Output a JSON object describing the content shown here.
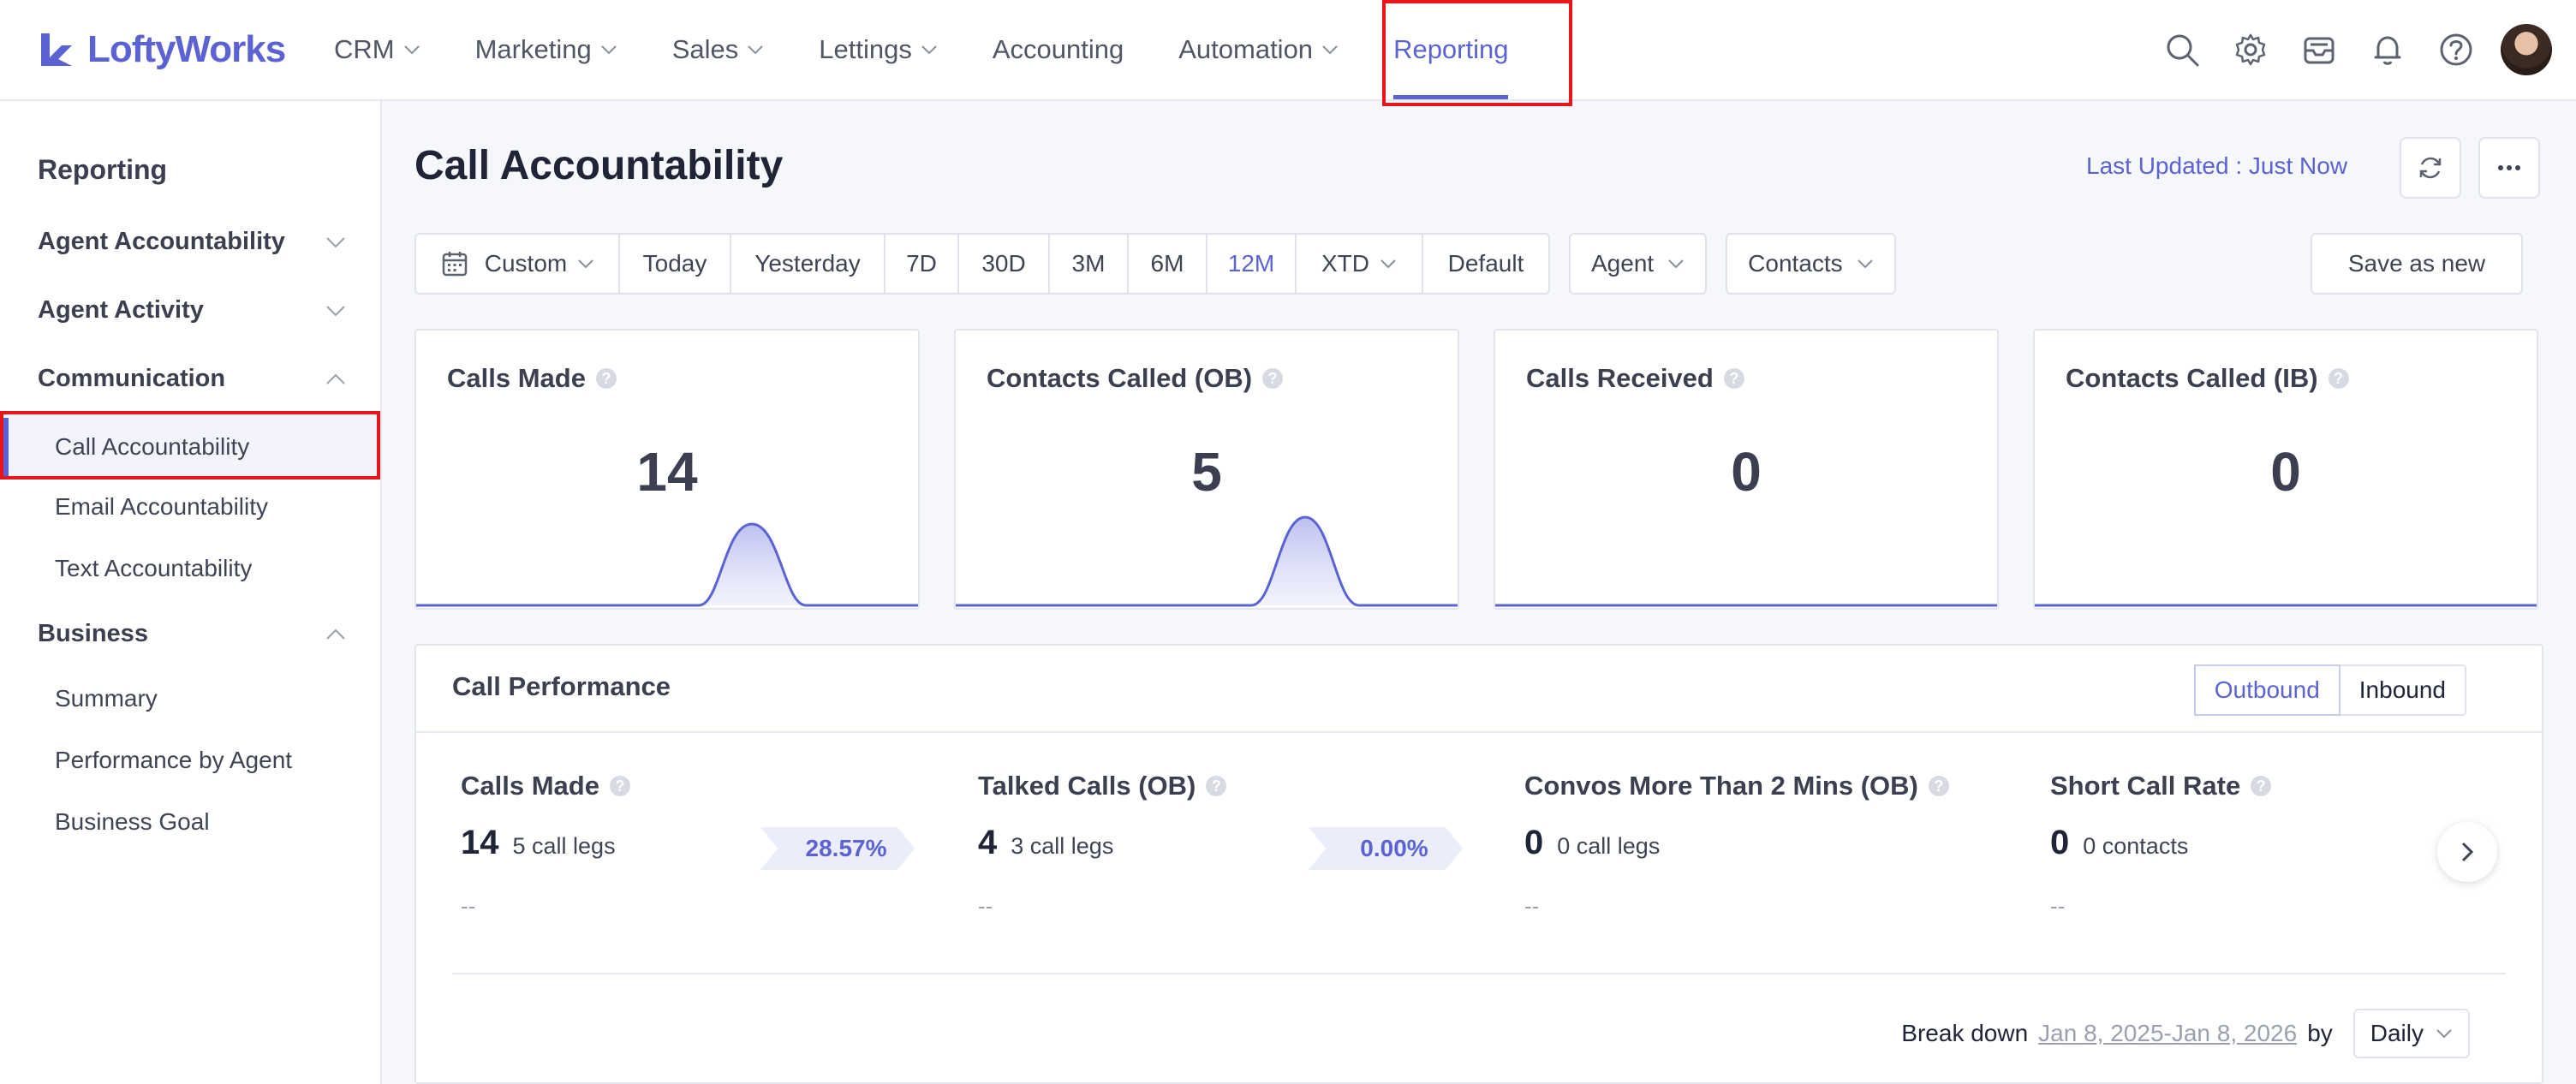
{
  "brand": {
    "name": "LoftyWorks",
    "color": "#5b63d3"
  },
  "nav": {
    "items": [
      {
        "label": "CRM",
        "dropdown": true
      },
      {
        "label": "Marketing",
        "dropdown": true
      },
      {
        "label": "Sales",
        "dropdown": true
      },
      {
        "label": "Lettings",
        "dropdown": true
      },
      {
        "label": "Accounting",
        "dropdown": false
      },
      {
        "label": "Automation",
        "dropdown": true
      },
      {
        "label": "Reporting",
        "dropdown": false,
        "active": true
      }
    ],
    "icons": [
      "search-icon",
      "gear-icon",
      "inbox-icon",
      "bell-icon",
      "help-icon"
    ]
  },
  "sidebar": {
    "title": "Reporting",
    "groups": [
      {
        "label": "Agent Accountability",
        "expanded": false,
        "items": []
      },
      {
        "label": "Agent Activity",
        "expanded": false,
        "items": []
      },
      {
        "label": "Communication",
        "expanded": true,
        "items": [
          "Call Accountability",
          "Email Accountability",
          "Text Accountability"
        ]
      },
      {
        "label": "Business",
        "expanded": true,
        "items": [
          "Summary",
          "Performance by Agent",
          "Business Goal"
        ]
      }
    ],
    "active_item": "Call Accountability"
  },
  "page": {
    "title": "Call Accountability",
    "last_updated": "Last Updated : Just Now"
  },
  "filters": {
    "custom_label": "Custom",
    "ranges": [
      "Today",
      "Yesterday",
      "7D",
      "30D",
      "3M",
      "6M",
      "12M",
      "XTD",
      "Default"
    ],
    "active_range": "12M",
    "agent_label": "Agent",
    "contacts_label": "Contacts",
    "save_as_new": "Save as new"
  },
  "cards": [
    {
      "title": "Calls Made",
      "value": "14",
      "has_peak": true
    },
    {
      "title": "Contacts Called (OB)",
      "value": "5",
      "has_peak": true
    },
    {
      "title": "Calls Received",
      "value": "0",
      "has_peak": false
    },
    {
      "title": "Contacts Called (IB)",
      "value": "0",
      "has_peak": false
    }
  ],
  "performance": {
    "title": "Call Performance",
    "toggle": [
      "Outbound",
      "Inbound"
    ],
    "toggle_active": "Outbound",
    "metrics": [
      {
        "title": "Calls Made",
        "value": "14",
        "sub": "5 call legs",
        "dash": "--"
      },
      {
        "title": "Talked Calls (OB)",
        "value": "4",
        "sub": "3 call legs",
        "dash": "--"
      },
      {
        "title": "Convos More Than 2 Mins (OB)",
        "value": "0",
        "sub": "0 call legs",
        "dash": "--"
      },
      {
        "title": "Short Call Rate",
        "value": "0",
        "sub": "0 contacts",
        "dash": "--"
      }
    ],
    "rates": [
      "28.57%",
      "0.00%"
    ],
    "breakdown_label": "Break down",
    "breakdown_range": "Jan 8, 2025-Jan 8, 2026",
    "breakdown_by": "by",
    "breakdown_unit": "Daily"
  }
}
